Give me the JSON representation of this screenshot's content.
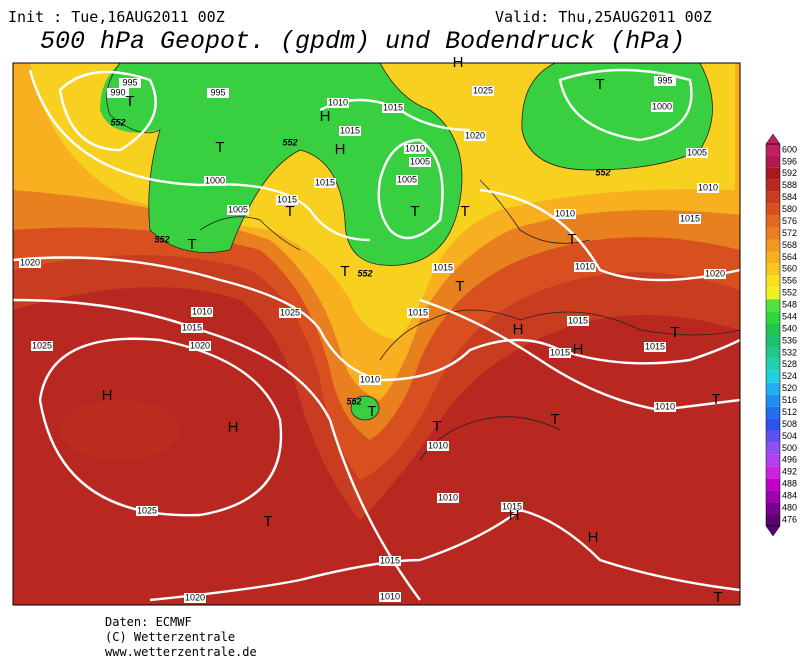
{
  "header": {
    "init": "Init : Tue,16AUG2011 00Z",
    "valid": "Valid: Thu,25AUG2011 00Z",
    "title": "500 hPa Geopot. (gpdm) und Bodendruck (hPa)"
  },
  "colorbar": {
    "levels": [
      476,
      480,
      484,
      488,
      492,
      496,
      500,
      504,
      508,
      512,
      516,
      520,
      524,
      528,
      532,
      536,
      540,
      544,
      548,
      552,
      556,
      560,
      564,
      568,
      572,
      576,
      580,
      584,
      588,
      592,
      596,
      600
    ],
    "colors": [
      "#5a0070",
      "#7a0090",
      "#a000b0",
      "#c000c8",
      "#d020e0",
      "#b040f0",
      "#9050f0",
      "#6050f0",
      "#3050f0",
      "#2070f0",
      "#2090f0",
      "#20b0f0",
      "#20d0e0",
      "#20d0b0",
      "#20c890",
      "#20c070",
      "#20c850",
      "#30d840",
      "#50e040",
      "#f0f020",
      "#f8e020",
      "#f8c820",
      "#f8b020",
      "#f09820",
      "#e88020",
      "#e06820",
      "#d85020",
      "#c83c20",
      "#b82820",
      "#a81a20",
      "#b01850",
      "#c02060"
    ]
  },
  "isobar_labels": [
    "995",
    "990",
    "995",
    "1010",
    "1015",
    "1025",
    "995",
    "1000",
    "1020",
    "1015",
    "1010",
    "1005",
    "1005",
    "1000",
    "1015",
    "1015",
    "1005",
    "1005",
    "1010",
    "1010",
    "1015",
    "1020",
    "1010",
    "1015",
    "1020",
    "1010",
    "1015",
    "1025",
    "1015",
    "1020",
    "1025",
    "1015",
    "1015",
    "1015",
    "1010",
    "1010",
    "1010",
    "1010",
    "1015",
    "1025",
    "1015",
    "1020",
    "1010"
  ],
  "centers": [
    "H",
    "T",
    "T",
    "H",
    "H",
    "T",
    "T",
    "T",
    "T",
    "T",
    "T",
    "T",
    "T",
    "H",
    "T",
    "H",
    "H",
    "T",
    "H",
    "T",
    "T",
    "T",
    "T",
    "H",
    "H",
    "T"
  ],
  "contour_labels": [
    "552",
    "552",
    "552",
    "552",
    "552",
    "552"
  ],
  "footer": {
    "source": "Daten: ECMWF",
    "copyright": "(C) Wetterzentrale",
    "url": "www.wetterzentrale.de"
  }
}
